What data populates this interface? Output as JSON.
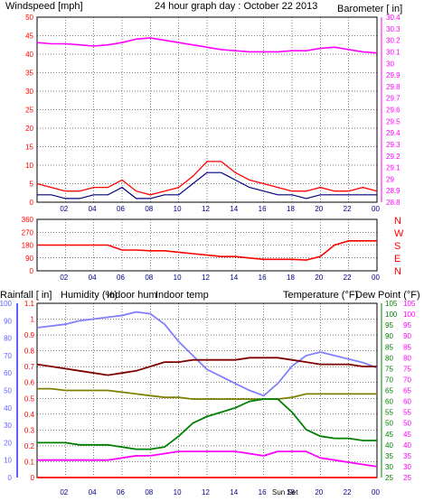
{
  "title": "24 hour graph day : October 22 2013",
  "colors": {
    "wind": "#ff0000",
    "windAvg": "#000080",
    "baro": "#ff00ff",
    "dir": "#ff0000",
    "rain": "#ff0000",
    "humidity": "#8080ff",
    "indoorHum": "#808000",
    "indoorTemp": "#800000",
    "temp": "#008000",
    "dew": "#ff00ff",
    "axisBlue": "#6060ff",
    "grid": "#000000"
  },
  "chart_data": [
    {
      "type": "line",
      "labels": {
        "left": "Windspeed [mph]",
        "right": "Barometer [ in]"
      },
      "x_ticks": [
        "02",
        "04",
        "06",
        "08",
        "10",
        "12",
        "14",
        "16",
        "18",
        "20",
        "22",
        "00"
      ],
      "x_tick_alt": "18",
      "x": [
        0,
        1,
        2,
        3,
        4,
        5,
        6,
        7,
        8,
        9,
        10,
        11,
        12,
        13,
        14,
        15,
        16,
        17,
        18,
        19,
        20,
        21,
        22,
        23,
        24
      ],
      "ylim_left": [
        0,
        50
      ],
      "yticks_left": [
        "0",
        "5",
        "10",
        "15",
        "20",
        "25",
        "30",
        "35",
        "40",
        "45",
        "50"
      ],
      "ylim_right": [
        28.8,
        30.4
      ],
      "yticks_right": [
        "28.8",
        "28.9",
        "29",
        "29.1",
        "29.2",
        "29.3",
        "29.4",
        "29.5",
        "29.6",
        "29.7",
        "29.8",
        "29.9",
        "30",
        "30.1",
        "30.2",
        "30.3",
        "30.4"
      ],
      "series": [
        {
          "name": "Windspeed gust",
          "values": [
            5,
            4,
            3,
            3,
            4,
            4,
            6,
            3,
            2,
            3,
            4,
            7,
            11,
            11,
            8,
            6,
            5,
            4,
            3,
            3,
            4,
            3,
            3,
            4,
            3
          ]
        },
        {
          "name": "Windspeed avg",
          "values": [
            2,
            2,
            1,
            1,
            2,
            2,
            4,
            1,
            1,
            2,
            2,
            5,
            8,
            8,
            6,
            4,
            3,
            2,
            2,
            1,
            2,
            2,
            2,
            2,
            2
          ]
        },
        {
          "name": "Barometer",
          "values": [
            30.18,
            30.17,
            30.17,
            30.16,
            30.15,
            30.16,
            30.18,
            30.21,
            30.22,
            30.2,
            30.18,
            30.16,
            30.14,
            30.12,
            30.11,
            30.1,
            30.1,
            30.1,
            30.11,
            30.11,
            30.13,
            30.14,
            30.12,
            30.1,
            30.09
          ]
        }
      ]
    },
    {
      "type": "line",
      "labels": {
        "right": [
          "N",
          "W",
          "S",
          "E",
          "N"
        ]
      },
      "x_ticks": [
        "02",
        "04",
        "06",
        "08",
        "10",
        "12",
        "14",
        "16",
        "18",
        "20",
        "22",
        "00"
      ],
      "ylim": [
        0,
        360
      ],
      "yticks": [
        "0",
        "90",
        "180",
        "270",
        "360"
      ],
      "x": [
        0,
        1,
        2,
        3,
        4,
        5,
        6,
        7,
        8,
        9,
        10,
        11,
        12,
        13,
        14,
        15,
        16,
        17,
        18,
        19,
        20,
        21,
        22,
        23,
        24
      ],
      "series": [
        {
          "name": "Wind direction",
          "values": [
            180,
            180,
            180,
            180,
            180,
            180,
            145,
            145,
            140,
            140,
            130,
            120,
            110,
            100,
            100,
            90,
            80,
            80,
            80,
            75,
            100,
            180,
            210,
            210,
            210
          ]
        }
      ]
    },
    {
      "type": "line",
      "labels": {
        "rain": "Rainfall [ in]",
        "humidity": "Humidity (%)",
        "indoorHum": "Indoor hum",
        "indoorTemp": "Indoor temp",
        "temp": "Temperature (°F)",
        "dew": "Dew Point (°F)",
        "sun": "Sun Set"
      },
      "x_ticks": [
        "02",
        "04",
        "06",
        "08",
        "10",
        "12",
        "14",
        "16",
        "18",
        "20",
        "22",
        "00"
      ],
      "x": [
        0,
        1,
        2,
        3,
        4,
        5,
        6,
        7,
        8,
        9,
        10,
        11,
        12,
        13,
        14,
        15,
        16,
        17,
        18,
        19,
        20,
        21,
        22,
        23,
        24
      ],
      "rain_ylim": [
        0,
        1.1
      ],
      "rain_ticks": [
        "0",
        "0.1",
        "0.2",
        "0.3",
        "0.4",
        "0.5",
        "0.6",
        "0.7",
        "0.8",
        "0.9",
        "1",
        "1.1"
      ],
      "hum_ylim": [
        0,
        100
      ],
      "hum_ticks": [
        "0",
        "10",
        "20",
        "30",
        "40",
        "50",
        "60",
        "70",
        "80",
        "90",
        "100"
      ],
      "temp_ylim": [
        25,
        105
      ],
      "temp_ticks": [
        "25",
        "30",
        "35",
        "40",
        "45",
        "50",
        "55",
        "60",
        "65",
        "70",
        "75",
        "80",
        "85",
        "90",
        "95",
        "100",
        "105"
      ],
      "series": [
        {
          "name": "Rainfall",
          "axis": "rain",
          "values": [
            0,
            0,
            0,
            0,
            0,
            0,
            0,
            0,
            0,
            0,
            0,
            0,
            0,
            0,
            0,
            0,
            0,
            0,
            0,
            0,
            0,
            0,
            0,
            0,
            0
          ]
        },
        {
          "name": "Humidity",
          "axis": "hum",
          "values": [
            86,
            87,
            88,
            90,
            91,
            92,
            93,
            95,
            94,
            88,
            78,
            70,
            62,
            58,
            54,
            50,
            47,
            54,
            64,
            70,
            72,
            70,
            68,
            66,
            63
          ]
        },
        {
          "name": "Indoor hum",
          "axis": "hum",
          "values": [
            51,
            51,
            50,
            50,
            50,
            50,
            49,
            48,
            47,
            46,
            46,
            45,
            45,
            45,
            45,
            45,
            45,
            45,
            46,
            48,
            48,
            48,
            48,
            48,
            48
          ]
        },
        {
          "name": "Indoor temp",
          "axis": "temp",
          "values": [
            77,
            76,
            75,
            74,
            73,
            72,
            73,
            74,
            76,
            78,
            78,
            79,
            79,
            79,
            79,
            80,
            80,
            80,
            79,
            78,
            77,
            77,
            77,
            76,
            76
          ]
        },
        {
          "name": "Temperature",
          "axis": "temp",
          "values": [
            41,
            41,
            41,
            40,
            40,
            40,
            39,
            38,
            38,
            39,
            44,
            50,
            53,
            55,
            57,
            60,
            61,
            61,
            55,
            47,
            44,
            43,
            43,
            42,
            42
          ]
        },
        {
          "name": "Dew Point",
          "axis": "temp",
          "values": [
            33,
            33,
            33,
            33,
            33,
            33,
            34,
            35,
            35,
            36,
            37,
            37,
            37,
            37,
            37,
            36,
            35,
            37,
            37,
            37,
            34,
            33,
            32,
            31,
            30
          ]
        }
      ]
    }
  ]
}
